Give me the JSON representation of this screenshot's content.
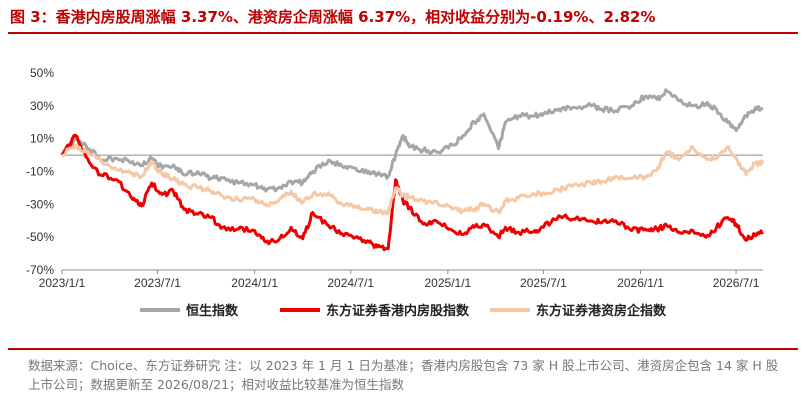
{
  "figure": {
    "title": "图 3：香港内房股周涨幅 3.37%、港资房企周涨幅 6.37%，相对收益分别为-0.19%、2.82%",
    "source_note": "数据来源：Choice、东方证券研究 注：以 2023 年 1 月 1 日为基准；香港内房股包含 73 家 H 股上市公司、港资房企包含 14 家 H 股上市公司；数据更新至 2026/08/21；相对收益比较基准为恒生指数"
  },
  "chart_data": {
    "type": "line",
    "x_tick_labels": [
      "2023/1/1",
      "2023/7/1",
      "2024/1/1",
      "2024/7/1",
      "2025/1/1",
      "2025/7/1",
      "2026/1/1",
      "2026/7/1"
    ],
    "y_tick_labels": [
      "50%",
      "30%",
      "10%",
      "-10%",
      "-30%",
      "-50%",
      "-70%"
    ],
    "ylim": [
      -70,
      50
    ],
    "y_ticks": [
      50,
      30,
      10,
      -10,
      -30,
      -50,
      -70
    ],
    "x_range": [
      "2023/1/1",
      "2026/8/21"
    ],
    "zero_line": true,
    "grid": false,
    "legend_position": "bottom",
    "series": [
      {
        "name": "恒生指数",
        "color": "#a6a6a6",
        "line_width": 3,
        "x": [
          "2023/1/1",
          "2023/1/27",
          "2023/2/15",
          "2023/3/15",
          "2023/4/15",
          "2023/5/15",
          "2023/6/1",
          "2023/6/20",
          "2023/7/10",
          "2023/7/31",
          "2023/8/20",
          "2023/9/15",
          "2023/10/10",
          "2023/11/1",
          "2023/12/1",
          "2024/1/1",
          "2024/1/22",
          "2024/2/15",
          "2024/3/10",
          "2024/4/1",
          "2024/4/20",
          "2024/5/20",
          "2024/6/15",
          "2024/7/10",
          "2024/8/5",
          "2024/8/20",
          "2024/9/10",
          "2024/9/24",
          "2024/10/8",
          "2024/10/20",
          "2024/11/15",
          "2024/12/10",
          "2025/1/10",
          "2025/2/1",
          "2025/2/20",
          "2025/3/10",
          "2025/4/7",
          "2025/4/20",
          "2025/5/15",
          "2025/6/15",
          "2025/7/1",
          "2025/7/30",
          "2025/8/25",
          "2025/9/30",
          "2025/10/20",
          "2025/11/15",
          "2025/12/15",
          "2026/1/10",
          "2026/2/1",
          "2026/2/20",
          "2026/3/15",
          "2026/4/10",
          "2026/5/5",
          "2026/5/25",
          "2026/6/15",
          "2026/7/1",
          "2026/7/20",
          "2026/8/5",
          "2026/8/21"
        ],
        "values": [
          0,
          10,
          6,
          -3,
          -2,
          -4,
          -6,
          -2,
          -8,
          -6,
          -12,
          -10,
          -14,
          -14,
          -17,
          -18,
          -22,
          -20,
          -16,
          -17,
          -10,
          -3,
          -7,
          -8,
          -10,
          -12,
          -13,
          0,
          12,
          5,
          3,
          2,
          6,
          12,
          20,
          25,
          4,
          20,
          24,
          24,
          25,
          28,
          29,
          30,
          28,
          27,
          30,
          36,
          34,
          39,
          33,
          30,
          31,
          28,
          20,
          15,
          24,
          28,
          28
        ]
      },
      {
        "name": "东方证券香港内房股指数",
        "color": "#ee0000",
        "line_width": 3,
        "x": [
          "2023/1/1",
          "2023/1/27",
          "2023/2/15",
          "2023/3/15",
          "2023/4/15",
          "2023/5/15",
          "2023/6/1",
          "2023/6/20",
          "2023/7/10",
          "2023/7/31",
          "2023/8/20",
          "2023/9/15",
          "2023/10/10",
          "2023/11/1",
          "2023/12/1",
          "2024/1/1",
          "2024/1/22",
          "2024/2/15",
          "2024/3/10",
          "2024/4/1",
          "2024/4/20",
          "2024/5/20",
          "2024/6/15",
          "2024/7/10",
          "2024/8/5",
          "2024/8/20",
          "2024/9/10",
          "2024/9/24",
          "2024/10/8",
          "2024/10/20",
          "2024/11/15",
          "2024/12/10",
          "2025/1/10",
          "2025/2/1",
          "2025/2/20",
          "2025/3/10",
          "2025/4/7",
          "2025/4/20",
          "2025/5/15",
          "2025/6/15",
          "2025/7/1",
          "2025/7/30",
          "2025/8/25",
          "2025/9/30",
          "2025/10/20",
          "2025/11/15",
          "2025/12/15",
          "2026/1/10",
          "2026/2/1",
          "2026/2/20",
          "2026/3/15",
          "2026/4/10",
          "2026/5/5",
          "2026/5/25",
          "2026/6/15",
          "2026/7/1",
          "2026/7/20",
          "2026/8/5",
          "2026/8/21"
        ],
        "values": [
          0,
          12,
          -1,
          -12,
          -15,
          -27,
          -31,
          -17,
          -24,
          -22,
          -33,
          -36,
          -38,
          -44,
          -45,
          -46,
          -53,
          -52,
          -44,
          -51,
          -35,
          -43,
          -48,
          -50,
          -53,
          -56,
          -57,
          -15,
          -28,
          -32,
          -42,
          -40,
          -46,
          -48,
          -44,
          -42,
          -50,
          -44,
          -47,
          -46,
          -44,
          -37,
          -39,
          -40,
          -41,
          -40,
          -46,
          -45,
          -45,
          -43,
          -47,
          -46,
          -50,
          -44,
          -38,
          -42,
          -52,
          -48,
          -47
        ]
      },
      {
        "name": "东方证券港资房企指数",
        "color": "#f5c8a6",
        "line_width": 3,
        "x": [
          "2023/1/1",
          "2023/1/27",
          "2023/2/15",
          "2023/3/15",
          "2023/4/15",
          "2023/5/15",
          "2023/6/1",
          "2023/6/20",
          "2023/7/10",
          "2023/7/31",
          "2023/8/20",
          "2023/9/15",
          "2023/10/10",
          "2023/11/1",
          "2023/12/1",
          "2024/1/1",
          "2024/1/22",
          "2024/2/15",
          "2024/3/10",
          "2024/4/1",
          "2024/4/20",
          "2024/5/20",
          "2024/6/15",
          "2024/7/10",
          "2024/8/5",
          "2024/8/20",
          "2024/9/10",
          "2024/9/24",
          "2024/10/8",
          "2024/10/20",
          "2024/11/15",
          "2024/12/10",
          "2025/1/10",
          "2025/2/1",
          "2025/2/20",
          "2025/3/10",
          "2025/4/7",
          "2025/4/20",
          "2025/5/15",
          "2025/6/15",
          "2025/7/1",
          "2025/7/30",
          "2025/8/25",
          "2025/9/30",
          "2025/10/20",
          "2025/11/15",
          "2025/12/15",
          "2026/1/10",
          "2026/2/1",
          "2026/2/20",
          "2026/3/15",
          "2026/4/10",
          "2026/5/5",
          "2026/5/25",
          "2026/6/15",
          "2026/7/1",
          "2026/7/20",
          "2026/8/5",
          "2026/8/21"
        ],
        "values": [
          0,
          6,
          2,
          -3,
          -9,
          -11,
          -13,
          -4,
          -12,
          -14,
          -18,
          -20,
          -22,
          -25,
          -27,
          -27,
          -30,
          -28,
          -22,
          -29,
          -24,
          -23,
          -30,
          -31,
          -33,
          -35,
          -35,
          -20,
          -24,
          -26,
          -28,
          -28,
          -33,
          -34,
          -33,
          -30,
          -35,
          -28,
          -26,
          -24,
          -23,
          -21,
          -19,
          -17,
          -16,
          -13,
          -14,
          -13,
          -9,
          2,
          -3,
          5,
          -2,
          -2,
          5,
          -2,
          -12,
          -5,
          -5
        ]
      }
    ]
  }
}
